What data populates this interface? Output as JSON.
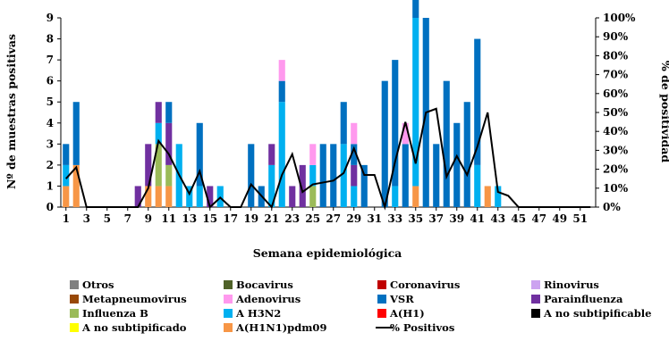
{
  "chart_data": {
    "type": "bar",
    "stacked": true,
    "xlabel": "Semana epidemiológica",
    "ylabel": "Nº de muestras positivas",
    "y2label": "% de positividad",
    "ylim": [
      0,
      9
    ],
    "y2lim": [
      0,
      100
    ],
    "yticks": [
      "0",
      "1",
      "2",
      "3",
      "4",
      "5",
      "6",
      "7",
      "8",
      "9"
    ],
    "y2ticks": [
      "0%",
      "10%",
      "20%",
      "30%",
      "40%",
      "50%",
      "60%",
      "70%",
      "80%",
      "90%",
      "100%"
    ],
    "xticks": [
      "1",
      "3",
      "5",
      "7",
      "9",
      "11",
      "13",
      "15",
      "17",
      "19",
      "21",
      "23",
      "25",
      "27",
      "29",
      "31",
      "33",
      "35",
      "37",
      "39",
      "41",
      "43",
      "45",
      "47",
      "49",
      "51"
    ],
    "categories": [
      1,
      2,
      3,
      4,
      5,
      6,
      7,
      8,
      9,
      10,
      11,
      12,
      13,
      14,
      15,
      16,
      17,
      18,
      19,
      20,
      21,
      22,
      23,
      24,
      25,
      26,
      27,
      28,
      29,
      30,
      31,
      32,
      33,
      34,
      35,
      36,
      37,
      38,
      39,
      40,
      41,
      42,
      43,
      44,
      45,
      46,
      47,
      48,
      49,
      50,
      51,
      52
    ],
    "legend_position": "bottom",
    "series": [
      {
        "name": "Otros",
        "color": "#808080",
        "values": [
          0,
          0,
          0,
          0,
          0,
          0,
          0,
          0,
          0,
          0,
          0,
          0,
          0,
          0,
          0,
          0,
          0,
          0,
          0,
          0,
          0,
          0,
          0,
          0,
          0,
          0,
          0,
          0,
          0,
          0,
          0,
          0,
          0,
          0,
          0,
          0,
          0,
          0,
          0,
          0,
          0,
          0,
          0,
          0,
          0,
          0,
          0,
          0,
          0,
          0,
          0,
          0
        ]
      },
      {
        "name": "Bocavirus",
        "color": "#4F6228",
        "values": [
          0,
          0,
          0,
          0,
          0,
          0,
          0,
          0,
          0,
          0,
          0,
          0,
          0,
          0,
          0,
          0,
          0,
          0,
          0,
          0,
          0,
          0,
          0,
          0,
          0,
          0,
          0,
          0,
          0,
          0,
          0,
          0,
          0,
          0,
          0,
          0,
          0,
          0,
          0,
          0,
          0,
          0,
          0,
          0,
          0,
          0,
          0,
          0,
          0,
          0,
          0,
          0
        ]
      },
      {
        "name": "Coronavirus",
        "color": "#C00000",
        "values": [
          0,
          0,
          0,
          0,
          0,
          0,
          0,
          0,
          0,
          0,
          0,
          0,
          0,
          0,
          0,
          0,
          0,
          0,
          0,
          0,
          0,
          0,
          0,
          0,
          0,
          0,
          0,
          0,
          0,
          0,
          0,
          0,
          0,
          0,
          0,
          0,
          0,
          0,
          0,
          0,
          0,
          0,
          0,
          0,
          0,
          0,
          0,
          0,
          0,
          0,
          0,
          0
        ]
      },
      {
        "name": "Rinovirus",
        "color": "#CCA3F0",
        "values": [
          0,
          0,
          0,
          0,
          0,
          0,
          0,
          0,
          0,
          0,
          0,
          0,
          0,
          0,
          0,
          0,
          0,
          0,
          0,
          0,
          0,
          0,
          0,
          0,
          0,
          0,
          0,
          0,
          0,
          0,
          0,
          0,
          0,
          0,
          0,
          0,
          0,
          0,
          0,
          0,
          0,
          0,
          0,
          0,
          0,
          0,
          0,
          0,
          0,
          0,
          0,
          0
        ]
      },
      {
        "name": "Metapneumovirus",
        "color": "#984807",
        "values": [
          0,
          0,
          0,
          0,
          0,
          0,
          0,
          0,
          0,
          0,
          0,
          0,
          0,
          0,
          0,
          0,
          0,
          0,
          0,
          0,
          0,
          0,
          0,
          0,
          0,
          0,
          0,
          0,
          0,
          0,
          0,
          0,
          0,
          0,
          0,
          0,
          0,
          0,
          0,
          0,
          0,
          0,
          0,
          0,
          0,
          0,
          0,
          0,
          0,
          0,
          0,
          0
        ]
      },
      {
        "name": "Adenovirus",
        "color": "#FF99EE",
        "values": [
          0,
          0,
          0,
          0,
          0,
          0,
          0,
          0,
          0,
          0,
          0,
          0,
          0,
          0,
          0,
          0,
          0,
          0,
          0,
          0,
          0,
          1,
          0,
          0,
          1,
          0,
          0,
          0,
          1,
          0,
          0,
          0,
          0,
          1,
          0,
          0,
          0,
          0,
          0,
          0,
          0,
          0,
          0,
          0,
          0,
          0,
          0,
          0,
          0,
          0,
          0,
          0
        ]
      },
      {
        "name": "VSR",
        "color": "#0070C0",
        "values": [
          1,
          3,
          0,
          0,
          0,
          0,
          0,
          0,
          0,
          0,
          1,
          0,
          0,
          3,
          0,
          0,
          0,
          0,
          3,
          1,
          0,
          1,
          0,
          0,
          0,
          3,
          3,
          2,
          1,
          2,
          0,
          6,
          6,
          3,
          8,
          9,
          3,
          6,
          4,
          5,
          6,
          0,
          0,
          0,
          0,
          0,
          0,
          0,
          0,
          0,
          0,
          0
        ]
      },
      {
        "name": "Parainfluenza",
        "color": "#7030A0",
        "values": [
          0,
          0,
          0,
          0,
          0,
          0,
          0,
          1,
          2,
          1,
          2,
          0,
          0,
          0,
          1,
          0,
          0,
          0,
          0,
          0,
          1,
          0,
          1,
          2,
          0,
          0,
          0,
          0,
          1,
          0,
          0,
          0,
          0,
          0,
          0,
          0,
          0,
          0,
          0,
          0,
          0,
          0,
          0,
          0,
          0,
          0,
          0,
          0,
          0,
          0,
          0,
          0
        ]
      },
      {
        "name": "Influenza  B",
        "color": "#9BBB59",
        "values": [
          0,
          0,
          0,
          0,
          0,
          0,
          0,
          0,
          0,
          2,
          1,
          0,
          0,
          0,
          0,
          0,
          0,
          0,
          0,
          0,
          0,
          0,
          0,
          0,
          1,
          0,
          0,
          0,
          0,
          0,
          0,
          0,
          0,
          0,
          0,
          0,
          0,
          0,
          0,
          0,
          0,
          0,
          0,
          0,
          0,
          0,
          0,
          0,
          0,
          0,
          0,
          0
        ]
      },
      {
        "name": "A H3N2",
        "color": "#00B0F0",
        "values": [
          1,
          0,
          0,
          0,
          0,
          0,
          0,
          0,
          0,
          1,
          0,
          3,
          1,
          1,
          0,
          1,
          0,
          0,
          0,
          0,
          2,
          5,
          0,
          0,
          1,
          0,
          0,
          3,
          1,
          0,
          0,
          0,
          1,
          0,
          8,
          0,
          0,
          0,
          0,
          0,
          2,
          0,
          1,
          0,
          0,
          0,
          0,
          0,
          0,
          0,
          0,
          0
        ]
      },
      {
        "name": "A(H1)",
        "color": "#FF0000",
        "values": [
          0,
          0,
          0,
          0,
          0,
          0,
          0,
          0,
          0,
          0,
          0,
          0,
          0,
          0,
          0,
          0,
          0,
          0,
          0,
          0,
          0,
          0,
          0,
          0,
          0,
          0,
          0,
          0,
          0,
          0,
          0,
          0,
          0,
          0,
          0,
          0,
          0,
          0,
          0,
          0,
          0,
          0,
          0,
          0,
          0,
          0,
          0,
          0,
          0,
          0,
          0,
          0
        ]
      },
      {
        "name": "A no subtipificable",
        "color": "#000000",
        "values": [
          0,
          0,
          0,
          0,
          0,
          0,
          0,
          0,
          0,
          0,
          0,
          0,
          0,
          0,
          0,
          0,
          0,
          0,
          0,
          0,
          0,
          0,
          0,
          0,
          0,
          0,
          0,
          0,
          0,
          0,
          0,
          0,
          0,
          0,
          0,
          0,
          0,
          0,
          0,
          0,
          0,
          0,
          0,
          0,
          0,
          0,
          0,
          0,
          0,
          0,
          0,
          0
        ]
      },
      {
        "name": "A no subtipificado",
        "color": "#FFFF00",
        "values": [
          0,
          0,
          0,
          0,
          0,
          0,
          0,
          0,
          0,
          0,
          0,
          0,
          0,
          0,
          0,
          0,
          0,
          0,
          0,
          0,
          0,
          0,
          0,
          0,
          0,
          0,
          0,
          0,
          0,
          0,
          0,
          0,
          0,
          0,
          0,
          0,
          0,
          0,
          0,
          0,
          0,
          0,
          0,
          0,
          0,
          0,
          0,
          0,
          0,
          0,
          0,
          0
        ]
      },
      {
        "name": "A(H1N1)pdm09",
        "color": "#F79646",
        "values": [
          1,
          2,
          0,
          0,
          0,
          0,
          0,
          0,
          1,
          1,
          1,
          0,
          0,
          0,
          0,
          0,
          0,
          0,
          0,
          0,
          0,
          0,
          0,
          0,
          0,
          0,
          0,
          0,
          0,
          0,
          0,
          0,
          0,
          0,
          1,
          0,
          0,
          0,
          0,
          0,
          0,
          1,
          0,
          0,
          0,
          0,
          0,
          0,
          0,
          0,
          0,
          0
        ]
      }
    ],
    "line_series": {
      "name": "% Positivos",
      "color": "#000000",
      "axis": "y2",
      "values": [
        15,
        21,
        0,
        0,
        0,
        0,
        0,
        0,
        10,
        35,
        28,
        17,
        7,
        19,
        0,
        5,
        0,
        0,
        12,
        6,
        0,
        17,
        28,
        8,
        12,
        13,
        14,
        18,
        31,
        17,
        17,
        0,
        24,
        45,
        23,
        50,
        52,
        16,
        27,
        17,
        32,
        50,
        8,
        6,
        0,
        0,
        0,
        0,
        0,
        0,
        0,
        0
      ]
    }
  }
}
